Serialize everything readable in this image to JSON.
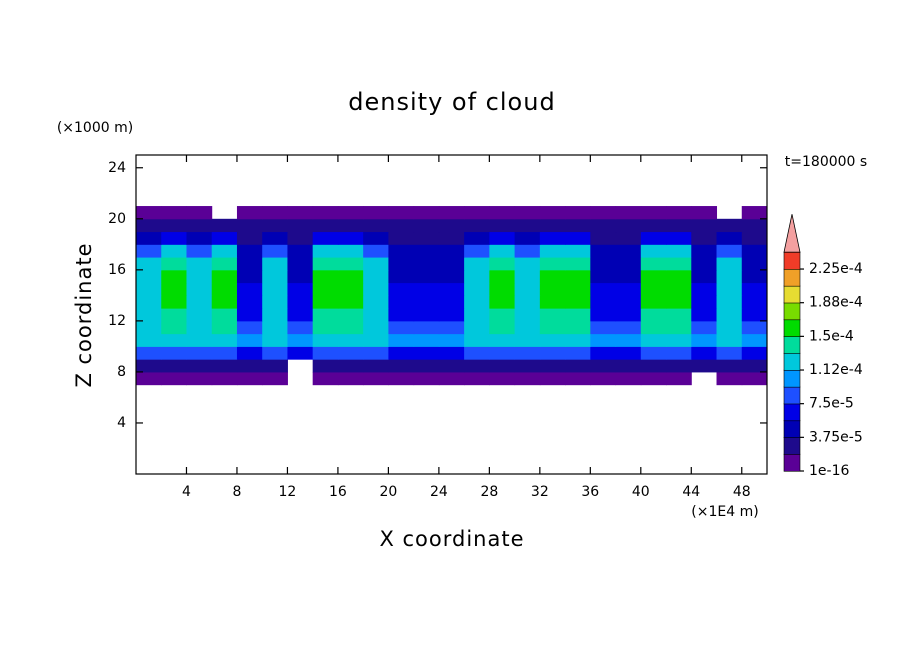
{
  "chart_data": {
    "type": "contour",
    "title": "density of cloud",
    "y_unit": "(×1000 m)",
    "x_unit": "(×1E4 m)",
    "time_label": "t=180000 s",
    "xlabel": "X coordinate",
    "ylabel": "Z coordinate",
    "xlim": [
      0,
      50
    ],
    "ylim": [
      0,
      25
    ],
    "xticks": [
      4,
      8,
      12,
      16,
      20,
      24,
      28,
      32,
      36,
      40,
      44,
      48
    ],
    "yticks": [
      4,
      8,
      12,
      16,
      20,
      24
    ],
    "x": [
      1,
      3,
      5,
      7,
      9,
      11,
      13,
      15,
      17,
      19,
      21,
      23,
      25,
      27,
      29,
      31,
      33,
      35,
      37,
      39,
      41,
      43,
      45,
      47,
      49
    ],
    "y": [
      7.5,
      8.5,
      9.5,
      10.5,
      11.5,
      12.5,
      13.5,
      14.5,
      15.5,
      16.5,
      17.5,
      18.5,
      19.5,
      20.5
    ],
    "z": [
      [
        1e-05,
        1e-05,
        1e-05,
        1e-05,
        1e-05,
        1e-05,
        null,
        1e-05,
        1e-05,
        1e-05,
        1e-05,
        1e-05,
        1e-05,
        1e-05,
        1e-05,
        1e-05,
        1e-05,
        1e-05,
        1e-05,
        1e-05,
        1e-05,
        1e-05,
        null,
        1e-05,
        1e-05
      ],
      [
        3e-05,
        3e-05,
        3e-05,
        3e-05,
        3e-05,
        3e-05,
        null,
        3e-05,
        3e-05,
        3e-05,
        3e-05,
        3e-05,
        3e-05,
        3e-05,
        3e-05,
        3e-05,
        3e-05,
        3e-05,
        3e-05,
        3e-05,
        3e-05,
        3e-05,
        3e-05,
        3e-05,
        3e-05
      ],
      [
        8e-05,
        8e-05,
        8e-05,
        8e-05,
        7e-05,
        8e-05,
        7e-05,
        8e-05,
        8e-05,
        8e-05,
        7e-05,
        7e-05,
        7e-05,
        8e-05,
        8e-05,
        8e-05,
        8e-05,
        8e-05,
        7e-05,
        7e-05,
        8e-05,
        8e-05,
        7e-05,
        8e-05,
        7e-05
      ],
      [
        0.000115,
        0.00012,
        0.000115,
        0.00012,
        0.0001,
        0.000115,
        0.0001,
        0.00012,
        0.00012,
        0.000115,
        0.0001,
        0.0001,
        0.0001,
        0.000115,
        0.00012,
        0.000115,
        0.00012,
        0.00012,
        0.0001,
        0.0001,
        0.00012,
        0.00012,
        0.0001,
        0.000115,
        0.0001
      ],
      [
        0.00012,
        0.000135,
        0.00012,
        0.000135,
        9e-05,
        0.00012,
        9e-05,
        0.000135,
        0.000135,
        0.00012,
        9e-05,
        9e-05,
        9e-05,
        0.00012,
        0.000135,
        0.00012,
        0.000135,
        0.000135,
        9e-05,
        9e-05,
        0.000135,
        0.000135,
        9e-05,
        0.00012,
        9e-05
      ],
      [
        0.00012,
        0.000145,
        0.00012,
        0.000145,
        7e-05,
        0.00012,
        7e-05,
        0.000145,
        0.000145,
        0.00012,
        7e-05,
        7e-05,
        7e-05,
        0.00012,
        0.000145,
        0.00012,
        0.000145,
        0.000145,
        7e-05,
        7e-05,
        0.000145,
        0.000145,
        7e-05,
        0.00012,
        7e-05
      ],
      [
        0.000125,
        0.00015,
        0.000125,
        0.00015,
        6e-05,
        0.000125,
        6e-05,
        0.00015,
        0.00015,
        0.000125,
        6e-05,
        6e-05,
        6e-05,
        0.000125,
        0.00015,
        0.000125,
        0.00015,
        0.00015,
        6e-05,
        6e-05,
        0.00015,
        0.00015,
        6e-05,
        0.000125,
        6e-05
      ],
      [
        0.00013,
        0.000155,
        0.00013,
        0.000155,
        6e-05,
        0.00013,
        6e-05,
        0.000155,
        0.000155,
        0.00013,
        6e-05,
        6e-05,
        6e-05,
        0.00013,
        0.000155,
        0.00013,
        0.000155,
        0.000155,
        6e-05,
        6e-05,
        0.000155,
        0.000155,
        6e-05,
        0.00013,
        6e-05
      ],
      [
        0.000125,
        0.00015,
        0.000125,
        0.00015,
        5e-05,
        0.000125,
        5e-05,
        0.00015,
        0.00015,
        0.000125,
        5e-05,
        5e-05,
        5e-05,
        0.000125,
        0.00015,
        0.000125,
        0.00015,
        0.00015,
        5e-05,
        5e-05,
        0.00015,
        0.00015,
        5e-05,
        0.000125,
        5e-05
      ],
      [
        0.000115,
        0.00014,
        0.000115,
        0.00014,
        5e-05,
        0.000115,
        5e-05,
        0.00014,
        0.00014,
        0.000115,
        5e-05,
        5e-05,
        5e-05,
        0.000115,
        0.00014,
        0.000115,
        0.00014,
        0.00014,
        5e-05,
        5e-05,
        0.00014,
        0.00014,
        5e-05,
        0.000115,
        5e-05
      ],
      [
        9e-05,
        0.00012,
        9e-05,
        0.00012,
        4e-05,
        9e-05,
        4e-05,
        0.00012,
        0.00012,
        9e-05,
        4e-05,
        4e-05,
        4e-05,
        9e-05,
        0.00012,
        9e-05,
        0.00012,
        0.00012,
        4e-05,
        4e-05,
        0.00012,
        0.00012,
        4e-05,
        9e-05,
        4e-05
      ],
      [
        5e-05,
        7e-05,
        5e-05,
        7e-05,
        3e-05,
        5e-05,
        3e-05,
        7e-05,
        7e-05,
        5e-05,
        3e-05,
        3e-05,
        3e-05,
        5e-05,
        7e-05,
        5e-05,
        7e-05,
        7e-05,
        3e-05,
        3e-05,
        7e-05,
        7e-05,
        3e-05,
        5e-05,
        3e-05
      ],
      [
        2.5e-05,
        3e-05,
        2.5e-05,
        3e-05,
        2e-05,
        2.5e-05,
        2e-05,
        3e-05,
        3e-05,
        2.5e-05,
        2e-05,
        2e-05,
        2e-05,
        2.5e-05,
        3e-05,
        2.5e-05,
        3e-05,
        3e-05,
        2e-05,
        2e-05,
        3e-05,
        3e-05,
        2e-05,
        2.5e-05,
        2e-05
      ],
      [
        1e-05,
        1e-05,
        1e-05,
        null,
        1e-05,
        1e-05,
        1e-05,
        1e-05,
        1e-05,
        1e-05,
        1e-05,
        1e-05,
        1e-05,
        1e-05,
        1e-05,
        1e-05,
        1e-05,
        1e-05,
        1e-05,
        1e-05,
        1e-05,
        1e-05,
        1e-05,
        null,
        1e-05
      ]
    ],
    "levels": [
      1e-16,
      1.875e-05,
      3.75e-05,
      5.625e-05,
      7.5e-05,
      9.375e-05,
      0.0001125,
      0.00013125,
      0.00015,
      0.00016875,
      0.0001875,
      0.00020625,
      0.000225
    ],
    "colors": [
      "#5a0096",
      "#1e0a8c",
      "#0000b4",
      "#0000e6",
      "#1e50ff",
      "#0096ff",
      "#00c8dc",
      "#00dc9c",
      "#00dc00",
      "#78dc00",
      "#e6dc32",
      "#f0a028",
      "#f03c28"
    ],
    "over_color": "#f4a0a0",
    "cticks": [
      1e-16,
      {
        "value": 3.75e-05,
        "label": "3.75e-5"
      },
      {
        "value": 7.5e-05,
        "label": "7.5e-5"
      },
      {
        "value": 0.0001125,
        "label": "1.12e-4"
      },
      {
        "value": 0.00015,
        "label": "1.5e-4"
      },
      {
        "value": 0.0001875,
        "label": "1.88e-4"
      },
      {
        "value": 0.000225,
        "label": "2.25e-4"
      }
    ]
  }
}
